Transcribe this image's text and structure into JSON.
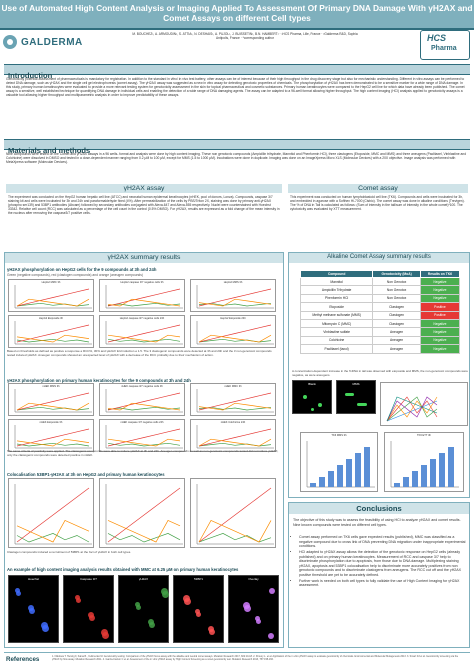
{
  "title": "Use of Automated High Content Analysis or Imaging Applied To Assessment Of Primary DNA Damage With γH2AX and Comet Assays on different Cell types",
  "logo_left": "GALDERMA",
  "logo_right": {
    "line1": "HCS",
    "line2": "Pharma"
  },
  "authors": "M. BOUCHEZ¹, A. ARMOUDIN¹, S. ATTIA¹, N. DESHAIS¹, A. PUJOL¹, J. BUISSETIN¹, B.N. HAMBERT¹ · ¹HCS Pharma, Lille, France · ²Galderma R&D, Sophia Antipolis, France · *corresponding author",
  "sections": {
    "introduction": "Introduction",
    "materials": "Materials and methods",
    "conclusions": "Conclusions",
    "references": "References"
  },
  "intro_text": "Genotoxicity potential assessment of pharmaceuticals is mandatory for registration. In addition to the standard in vitro/ in vivo test battery, other assays can be of interest because of their high throughput in the drug discovery stage but also for mechanistic understanding. Different in vitro assays can be performed to detect DNA damage, such as γH2AX and the single cell gel electrophoresis (comet assay). The γH2AX assay was suggested as a new in vitro assay for detecting genotoxic properties of chemicals. The phosphorylation of γH2AX has been demonstrated to be a sensitive marker for a wide range of DNA damage. In this study, primary human keratinocytes were evaluated to provide a more relevant testing system for genotoxicity assessment in the skin for topical pharmaceutical and cosmetic substances. Primary human keratinocytes were compared to the HepG2 cell line for which data have already been published. The comet assay is a sensitive, well established technique for quantifying DNA damage in individual cells and enabling the detection of a wide range of DNA damaging agents. The assay can be adapted to a 96-well format allowing higher throughput. The high content imaging (HCI) analysis applied to genotoxicity assays is a valuable tool allowing higher throughput and multiparametric analysis in order to improve predictability of these assays.",
  "materials_text": "Nine compounds were tested on the Comet and γH2AX assays in a 96 wells- format and analysis were done by high content imaging. These non genotoxic compounds (Ampicillin trihydrate, Mannitol and Phenformin HCl), three clastogens (Etoposide, MMC and MMS) and three aneugens (Paclitaxel, Vinblastine and Colchicine) were dissolved in DMSO and tested in a dose-dependent manner ranging from 0.2 μM to 100 μM, except for MMS (1.5 to 1000 μM). Incubations were done in duplicate. Imaging was done on an ImageXpress Micro XLS (Molecular Devices) with a 20X objective. Image analysis was performed with MetaXpress software (Molecular Devices).",
  "h2ax_assay": {
    "title": "γH2AX assay",
    "text": "The experiment was conducted on the HepG2 human hepatic cell line (ATCC) and neonatal human epidermal keratinocytes (nHEK, pool of donors, Lonza). Compounds, caspase 3/7 staining kit and cells were incubated for 3h and 24h and paraformaldehyde fixed (4%). After permeabilization of the cells by PBS/Triton 2X, staining was done by primary anti-γH2AX (phospho ser139) and 53BP1 antibodies (Abcam) followed by secondary antibodies conjugated with Alexa-647 and Alexa-555 respectively. Nuclei were counterstained with Hoechst 33342. Relative cell count (RCC) was calculated as a percentage of the cell count in the control (0.5% DMSO). For γH2AX, results are expressed as a fold change of the mean intensity in the nucleus after removing the caspase3/7 positive cells."
  },
  "comet_assay": {
    "title": "Comet assay",
    "text": "This experiment was conducted on human lymphoblastoid cell line (TK6). Compounds and cells were incubated for 3h, and embedded in agarose with a Softhex Hi-7000 (Cisbio). The comet assay was done in alkaline conditions (Trevigen). The % of DNA in Tail is calculated as follows: (Sum of intensity in the tail/sum of intensity in the whole comet)*100. The cytotoxicity was evaluated by XTT measurement."
  },
  "h2ax_results": {
    "title": "γH2AX summary results",
    "hepg2_head": "γH2AX phosphorylation on HepG2 cells for the 9 compounds at 3h and 24h",
    "hepg2_legend": "Green (negative compounds), red (clastogen compounds) and orange (aneugen compounds)",
    "hepg2_plots": [
      "HepG2 MMC 3h",
      "HepG2 caspase 3/7 negative cells 3h",
      "HepG2 MMS 3h",
      "HepG2 Etoposide 3h",
      "HepG2 caspase 3/7 negative cells 24h",
      "HepG2 Etoposide 24h"
    ],
    "hepg2_caption": "Based on thresholds as defined as positive a response ≥ RCC%, 30% and γH2AX fold induction ≥ 1.5. The 3 clastogenic compounds were detected at 3h and 24h and the 3 non-genotoxic compounds tested induced γH2AX. Aneugen compounds showed an unexpected level of γH2AX with a decrease of the RCC probably due to their mechanism of action.",
    "nhek_head": "γH2AX phosphorylation on primary human keratinocytes for the 9 compounds at 3h and 24h",
    "nhek_plots": [
      "nHEK MMS 3h",
      "nHEK caspase 3/7 negative cells 3h",
      "nHEK MMC 3h",
      "nHEK Etoposide 3h",
      "nHEK caspase 3/7 negative cells 24h",
      "nHEK Colchicine 24h"
    ],
    "nhek_caption": "The same criteria of positivity were applied. The clastogenic compounds were able to induce γH2AX at 3h and 24h. Aneugen compounds as well as non-genotoxic compounds tested did not induce γH2AX, only the clastogenic compounds were detected positive in nHEK.",
    "coloc_head": "Colocalisation 53BP1-γH2AX at 3h on HepG2 and primary human keratinocytes",
    "coloc_caption": "Clastogen compounds induced a recruitment of 53BP1 at the foci of γH2AX in both cell types.",
    "example_head": "An example of high content imaging analysis results obtained with MMC at 6.25 μM on primary human keratinocytes",
    "example_labels": [
      "Hoechst",
      "Caspase 3/7",
      "γH2AX",
      "53BP1",
      "Overlay"
    ]
  },
  "comet_results": {
    "title": "Alkaline Comet Assay summary results",
    "headers": [
      "Compound",
      "Genotoxicity (MoA)",
      "Results on TK6"
    ],
    "rows": [
      [
        "Mannitol",
        "Non Genotox",
        "Negative"
      ],
      [
        "Ampicillin Trihydrate",
        "Non Genotox",
        "Negative"
      ],
      [
        "Phenformin HCl",
        "Non Genotox",
        "Negative"
      ],
      [
        "Etoposide",
        "Clastogen",
        "Positive"
      ],
      [
        "Methyl methane sulfonate (MMS)",
        "Clastogen",
        "Positive"
      ],
      [
        "Mitomycin C (MMC)",
        "Clastogen",
        "Negative"
      ],
      [
        "Vinblastine sulfate",
        "Aneugen",
        "Negative"
      ],
      [
        "Colchicine",
        "Aneugen",
        "Negative"
      ],
      [
        "Paclitaxel (taxol)",
        "Aneugen",
        "Negative"
      ]
    ],
    "result_classes": [
      "neg",
      "neg",
      "neg",
      "pos",
      "pos",
      "neg",
      "neg",
      "neg",
      "neg"
    ],
    "caption": "A concentration-dependent increase in the %DNA in tail was observed with etoposide and MMS, the non-genotoxic compounds were negative, as were aneugens.",
    "image_labels": [
      "Blank",
      "MMS"
    ],
    "plot_title": "TK6 MMS 3h",
    "plot_title2": "TK6 ETT 3h"
  },
  "conclusions": {
    "lead": "The objective of this study was to assess the feasibility of using HCI to analyze γH2AX and comet results. Nine known compounds were tested on different cell types.",
    "items": [
      "Comet assay performed on TK6 cells gave expected results (published), MMC was classified as a negative compound due to cross link of DNA preventing DNA migration under inappropriate experimental conditions.",
      "HCI adapted to γH2AX assay allows the detection of the genotoxic response on HepG2 cells (already published) and on primary human keratinocytes. Measurement of RCC and caspase 3/7 help to discriminate phosphorylation due to apoptosis, from those due to DNA damage. Multiplexing staining γH2AX, apoptosis and 53BP1 colocalisation help to discriminate more accurately positives from non genotoxic compounds and to discriminate clastogens from aneugens. The RCC cut off and the γH2AX positive threshold are yet to be accurately defined.",
      "Further work is needed on both cell types to fully validate the use of High Content Imaging for γH2AX assessment."
    ]
  },
  "references_text": "1. Nikolova T. Hennig F, Kaina B., Yedimenko M. Genotoxicity testing: Comparison of the γH2AX focus assay with the alkaline and neutral comet assays. Mutation Research 2017, 822:10-18. 2. Khoury L. et al. Application of the in vitro γH2AX assay to evaluate genotoxicity of chemicals. Environmental and Molecular Mutagenesis 2013. 3. Smart DJ et al. Genotoxicity screening via the γH2AX by flow assay. Mutation Research 2011. 4. Garcia-Canton C et al. Assessment of the in vitro γH2AX assay by High Content Screening as a novel genotoxicity test. Mutation Research 2013, 757:158-166."
}
